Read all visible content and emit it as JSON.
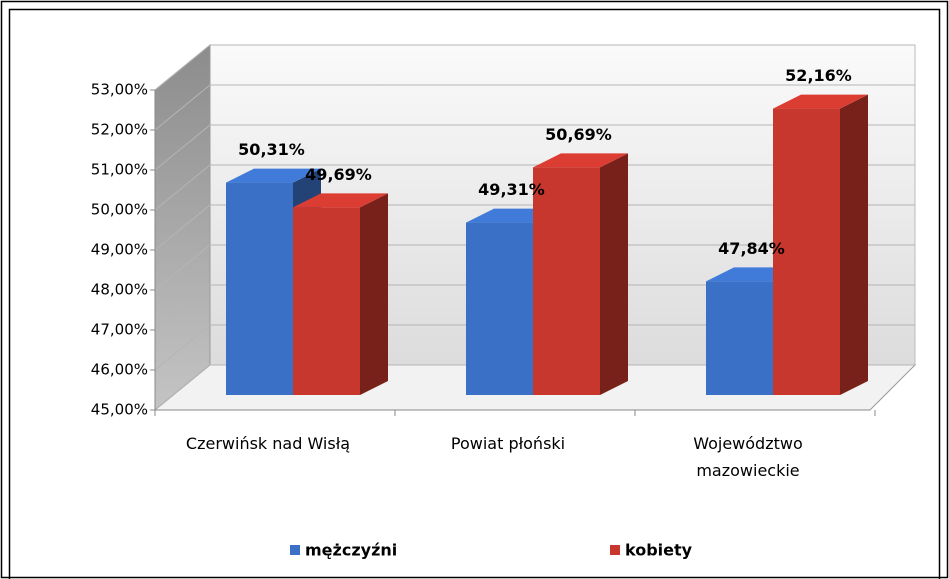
{
  "chart_data": {
    "type": "bar3d",
    "categories": [
      "Czerwińsk nad Wisłą",
      "Powiat płoński",
      "Województwo mazowieckie"
    ],
    "series": [
      {
        "name": "mężczyźni",
        "color": "#3a70c6",
        "values": [
          50.31,
          49.31,
          47.84
        ],
        "value_labels": [
          "50,31%",
          "49,31%",
          "47,84%"
        ]
      },
      {
        "name": "kobiety",
        "color": "#c8372d",
        "values": [
          49.69,
          50.69,
          52.16
        ],
        "value_labels": [
          "49,69%",
          "50,69%",
          "52,16%"
        ]
      }
    ],
    "ylim": [
      45,
      53
    ],
    "yticks": [
      {
        "value": 45,
        "label": "45,00%"
      },
      {
        "value": 46,
        "label": "46,00%"
      },
      {
        "value": 47,
        "label": "47,00%"
      },
      {
        "value": 48,
        "label": "48,00%"
      },
      {
        "value": 49,
        "label": "49,00%"
      },
      {
        "value": 50,
        "label": "50,00%"
      },
      {
        "value": 51,
        "label": "51,00%"
      },
      {
        "value": 52,
        "label": "52,00%"
      },
      {
        "value": 53,
        "label": "53,00%"
      }
    ],
    "grid": true,
    "legend": "bottom"
  }
}
